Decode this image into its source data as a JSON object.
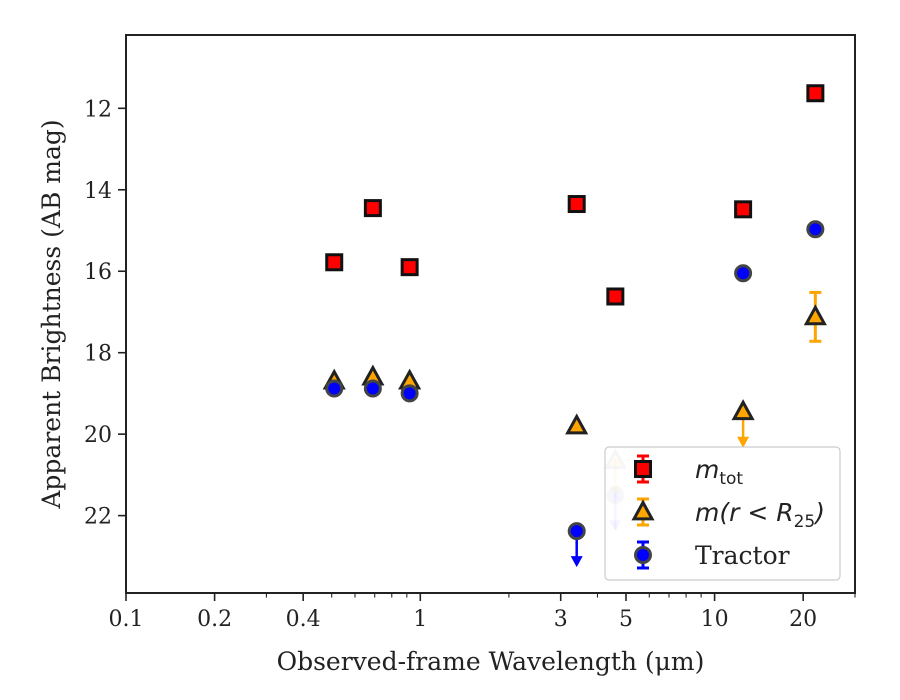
{
  "chart_data": {
    "type": "scatter",
    "xscale": "log",
    "xlim": [
      0.1,
      30
    ],
    "ylim": [
      23.9,
      10.2
    ],
    "y_inverted": true,
    "xlabel": "Observed-frame Wavelength (μm)",
    "ylabel": "Apparent Brightness (AB mag)",
    "x_ticks": [
      {
        "value": 0.1,
        "label": "0.1"
      },
      {
        "value": 0.2,
        "label": "0.2"
      },
      {
        "value": 0.4,
        "label": "0.4"
      },
      {
        "value": 1,
        "label": "1"
      },
      {
        "value": 3,
        "label": "3"
      },
      {
        "value": 5,
        "label": "5"
      },
      {
        "value": 10,
        "label": "10"
      },
      {
        "value": 20,
        "label": "20"
      }
    ],
    "y_ticks": [
      {
        "value": 12,
        "label": "12"
      },
      {
        "value": 14,
        "label": "14"
      },
      {
        "value": 16,
        "label": "16"
      },
      {
        "value": 18,
        "label": "18"
      },
      {
        "value": 20,
        "label": "20"
      },
      {
        "value": 22,
        "label": "22"
      }
    ],
    "grid": false,
    "legend": "lower-right",
    "series": [
      {
        "name_main": "m",
        "name_sub": "tot",
        "marker": "square",
        "color": "#ff0000",
        "edge": "#111111",
        "err_color": "#ff0000",
        "points": [
          {
            "x": 0.51,
            "y": 15.78
          },
          {
            "x": 0.69,
            "y": 14.45
          },
          {
            "x": 0.92,
            "y": 15.9
          },
          {
            "x": 3.4,
            "y": 14.35
          },
          {
            "x": 4.6,
            "y": 16.62
          },
          {
            "x": 12.5,
            "y": 14.48
          },
          {
            "x": 22.0,
            "y": 11.63
          }
        ]
      },
      {
        "name_main": "m(r < R",
        "name_sub": "25",
        "name_after": ")",
        "marker": "triangle",
        "color": "#ffa500",
        "edge": "#222222",
        "err_color": "#ffa500",
        "points": [
          {
            "x": 0.51,
            "y": 18.7
          },
          {
            "x": 0.69,
            "y": 18.6
          },
          {
            "x": 0.92,
            "y": 18.7
          },
          {
            "x": 3.4,
            "y": 19.8
          },
          {
            "x": 4.6,
            "y": 20.65,
            "faded": true,
            "upper_limit": true
          },
          {
            "x": 12.5,
            "y": 19.45,
            "upper_limit": true
          },
          {
            "x": 22.0,
            "y": 17.12,
            "yerr": 0.6
          }
        ]
      },
      {
        "name_main": "Tractor",
        "marker": "circle",
        "color": "#0000ff",
        "edge": "#444444",
        "err_color": "#0000ff",
        "points": [
          {
            "x": 0.51,
            "y": 18.88
          },
          {
            "x": 0.69,
            "y": 18.88
          },
          {
            "x": 0.92,
            "y": 19.0
          },
          {
            "x": 3.4,
            "y": 22.38,
            "upper_limit": true
          },
          {
            "x": 4.6,
            "y": 21.5,
            "faded": true,
            "upper_limit": true
          },
          {
            "x": 12.5,
            "y": 16.05
          },
          {
            "x": 22.0,
            "y": 14.97
          }
        ]
      }
    ]
  }
}
